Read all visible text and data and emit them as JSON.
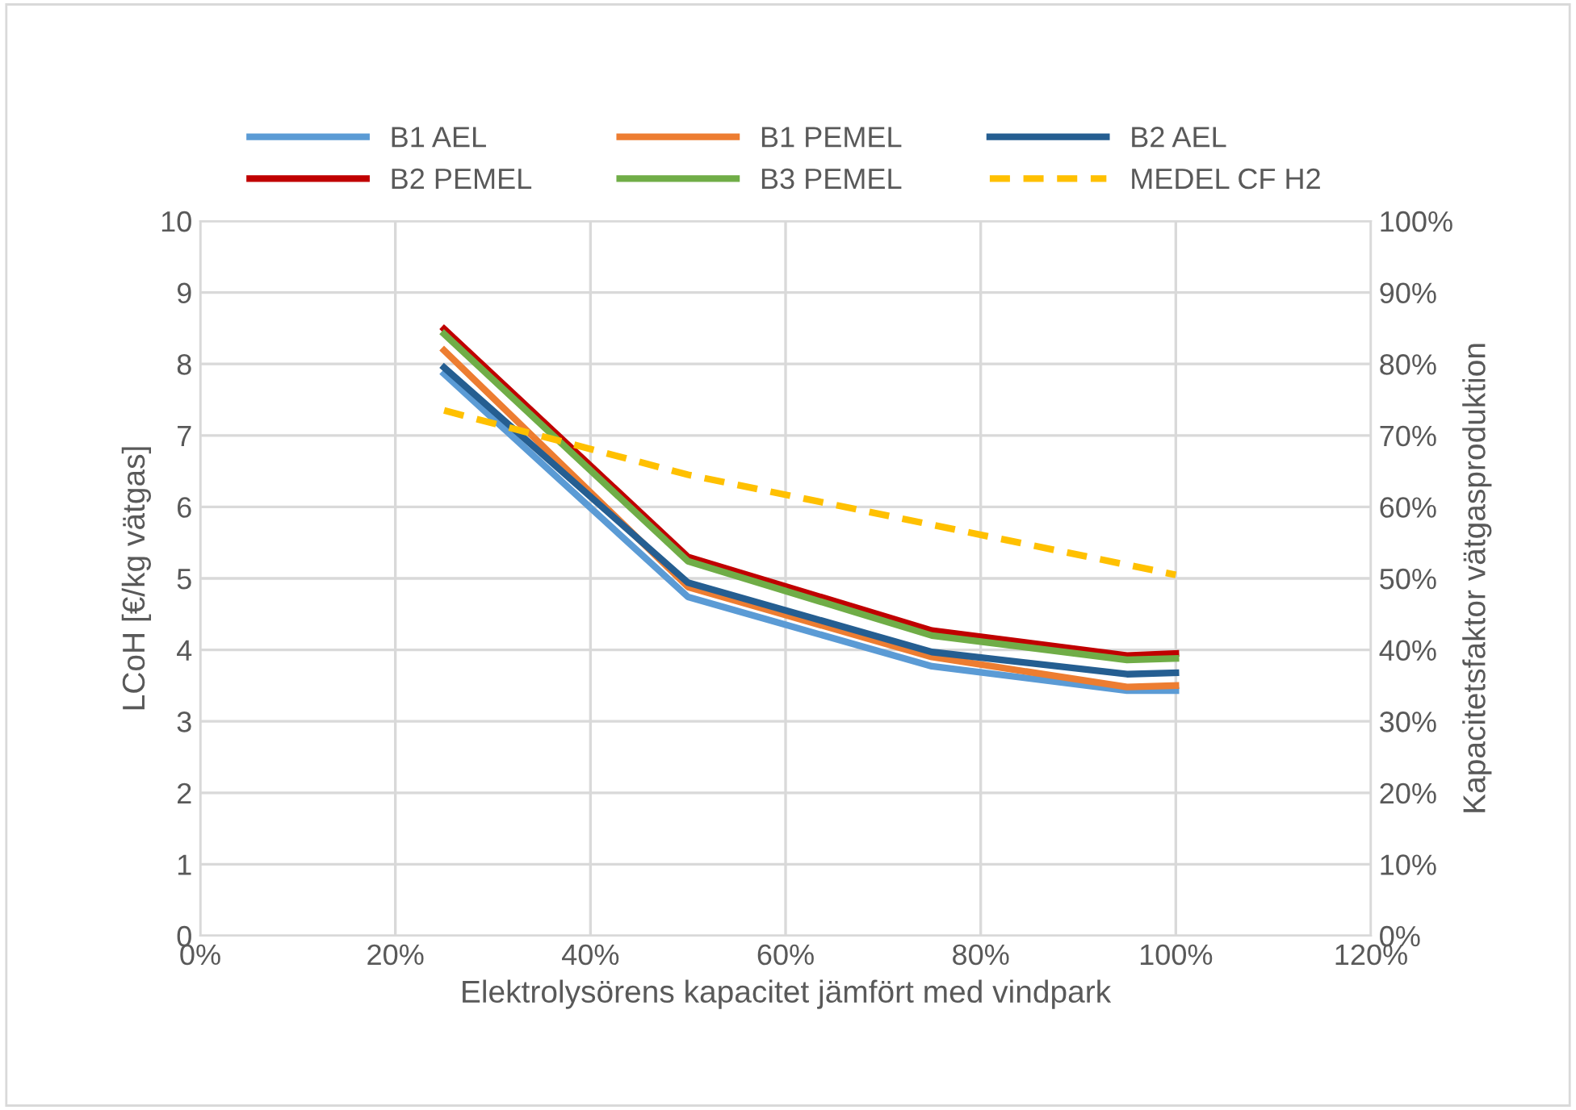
{
  "chart_data": {
    "type": "line",
    "xlabel": "Elektrolysörens kapacitet jämfört med vindpark",
    "ylabel": "LCoH [€/kg vätgas]",
    "y2label": "Kapacitetsfaktor vätgasproduktion",
    "x": [
      25,
      50,
      75,
      95,
      100
    ],
    "series": [
      {
        "name": "B1 AEL",
        "color": "#5b9bd5",
        "values": [
          7.86,
          4.74,
          3.77,
          3.43,
          3.43
        ]
      },
      {
        "name": "B1 PEMEL",
        "color": "#ed7d31",
        "values": [
          8.19,
          4.88,
          3.9,
          3.48,
          3.5
        ]
      },
      {
        "name": "B2 AEL",
        "color": "#255e91",
        "values": [
          7.95,
          4.94,
          3.97,
          3.66,
          3.68
        ]
      },
      {
        "name": "B2 PEMEL",
        "color": "#c00000",
        "values": [
          8.49,
          5.3,
          4.27,
          3.92,
          3.95
        ]
      },
      {
        "name": "B3 PEMEL",
        "color": "#70ad47",
        "values": [
          8.42,
          5.24,
          4.2,
          3.86,
          3.88
        ]
      },
      {
        "name": "MEDEL CF H2",
        "color": "#ffc000",
        "axis": "y2",
        "line_style": "dashed",
        "x": [
          25,
          50,
          75,
          100
        ],
        "values": [
          73.5,
          64.5,
          57.5,
          50.5
        ]
      }
    ],
    "xlim": [
      0,
      120
    ],
    "xticks": [
      {
        "value": 0,
        "label": "0%"
      },
      {
        "value": 20,
        "label": "20%"
      },
      {
        "value": 40,
        "label": "40%"
      },
      {
        "value": 60,
        "label": "60%"
      },
      {
        "value": 80,
        "label": "80%"
      },
      {
        "value": 100,
        "label": "100%"
      },
      {
        "value": 120,
        "label": "120%"
      }
    ],
    "ylim": [
      0,
      10
    ],
    "yticks": [
      0,
      1,
      2,
      3,
      4,
      5,
      6,
      7,
      8,
      9,
      10
    ],
    "y2lim": [
      0,
      100
    ],
    "y2ticks": [
      {
        "value": 0,
        "label": "0%"
      },
      {
        "value": 10,
        "label": "10%"
      },
      {
        "value": 20,
        "label": "20%"
      },
      {
        "value": 30,
        "label": "30%"
      },
      {
        "value": 40,
        "label": "40%"
      },
      {
        "value": 50,
        "label": "50%"
      },
      {
        "value": 60,
        "label": "60%"
      },
      {
        "value": 70,
        "label": "70%"
      },
      {
        "value": 80,
        "label": "80%"
      },
      {
        "value": 90,
        "label": "90%"
      },
      {
        "value": 100,
        "label": "100%"
      }
    ],
    "grid": true,
    "legend": "top",
    "marker": "none",
    "line_style": "solid"
  }
}
